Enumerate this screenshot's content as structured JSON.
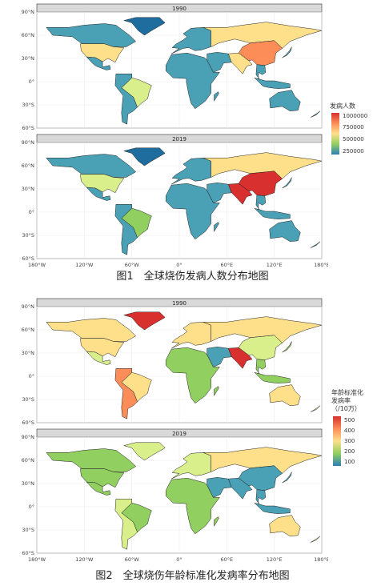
{
  "figure1": {
    "caption": "图1　全球烧伤发病人数分布地图",
    "panels": [
      {
        "strip": "1990"
      },
      {
        "strip": "2019"
      }
    ],
    "legend": {
      "title": "发病人数",
      "ticks": [
        "1000000",
        "750000",
        "500000",
        "250000"
      ],
      "colors": [
        "#d7302f",
        "#fc8d59",
        "#fee08b",
        "#91cf60",
        "#2c7fb8"
      ]
    }
  },
  "figure2": {
    "caption": "图2　全球烧伤年龄标准化发病率分布地图",
    "panels": [
      {
        "strip": "1990"
      },
      {
        "strip": "2019"
      }
    ],
    "legend": {
      "title_lines": [
        "年龄标准化",
        "发病率",
        "（/10万）"
      ],
      "ticks": [
        "500",
        "400",
        "300",
        "200",
        "100"
      ],
      "colors": [
        "#d7302f",
        "#fc8d59",
        "#fee08b",
        "#91cf60",
        "#2c7fb8"
      ]
    }
  },
  "axes": {
    "lat_labels": [
      "90°N",
      "60°N",
      "30°N",
      "0°",
      "30°S",
      "60°S"
    ],
    "lon_labels": [
      "180°W",
      "120°W",
      "60°W",
      "0°",
      "60°E",
      "120°E",
      "180°E"
    ]
  }
}
